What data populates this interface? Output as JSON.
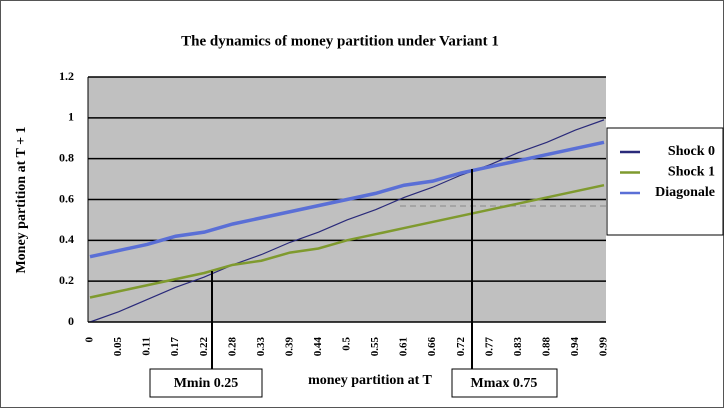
{
  "chart_data": {
    "type": "line",
    "title": "The dynamics of money partition under Variant 1",
    "y_label": "Money partition at T + 1",
    "x_label": "money partition at T",
    "categories": [
      "0",
      "0.05",
      "0.11",
      "0.17",
      "0.22",
      "0.28",
      "0.33",
      "0.39",
      "0.44",
      "0.5",
      "0.55",
      "0.61",
      "0.66",
      "0.72",
      "0.77",
      "0.83",
      "0.88",
      "0.94",
      "0.99"
    ],
    "series": [
      {
        "name": "Shock 0",
        "color": "#2a2a7a",
        "width": 1.2,
        "values": [
          0,
          0.05,
          0.11,
          0.17,
          0.22,
          0.28,
          0.33,
          0.39,
          0.44,
          0.5,
          0.55,
          0.61,
          0.66,
          0.72,
          0.77,
          0.83,
          0.88,
          0.94,
          0.99
        ]
      },
      {
        "name": "Shock 1",
        "color": "#7f9a2e",
        "width": 2.5,
        "values": [
          0.12,
          0.15,
          0.18,
          0.21,
          0.24,
          0.28,
          0.3,
          0.34,
          0.36,
          0.4,
          0.43,
          0.46,
          0.49,
          0.52,
          0.55,
          0.58,
          0.61,
          0.64,
          0.67
        ]
      },
      {
        "name": "Diagonale",
        "color": "#5a6fd6",
        "width": 3.5,
        "values": [
          0.32,
          0.35,
          0.38,
          0.42,
          0.44,
          0.48,
          0.51,
          0.54,
          0.57,
          0.6,
          0.63,
          0.67,
          0.69,
          0.73,
          0.76,
          0.79,
          0.82,
          0.85,
          0.88
        ]
      }
    ],
    "ylim": [
      0,
      1.2
    ],
    "yticks": [
      0,
      0.2,
      0.4,
      0.6,
      0.8,
      1,
      1.2
    ],
    "grid": true,
    "legend": "right",
    "annotations": [
      "Mmin 0.25",
      "Mmax 0.75"
    ]
  }
}
